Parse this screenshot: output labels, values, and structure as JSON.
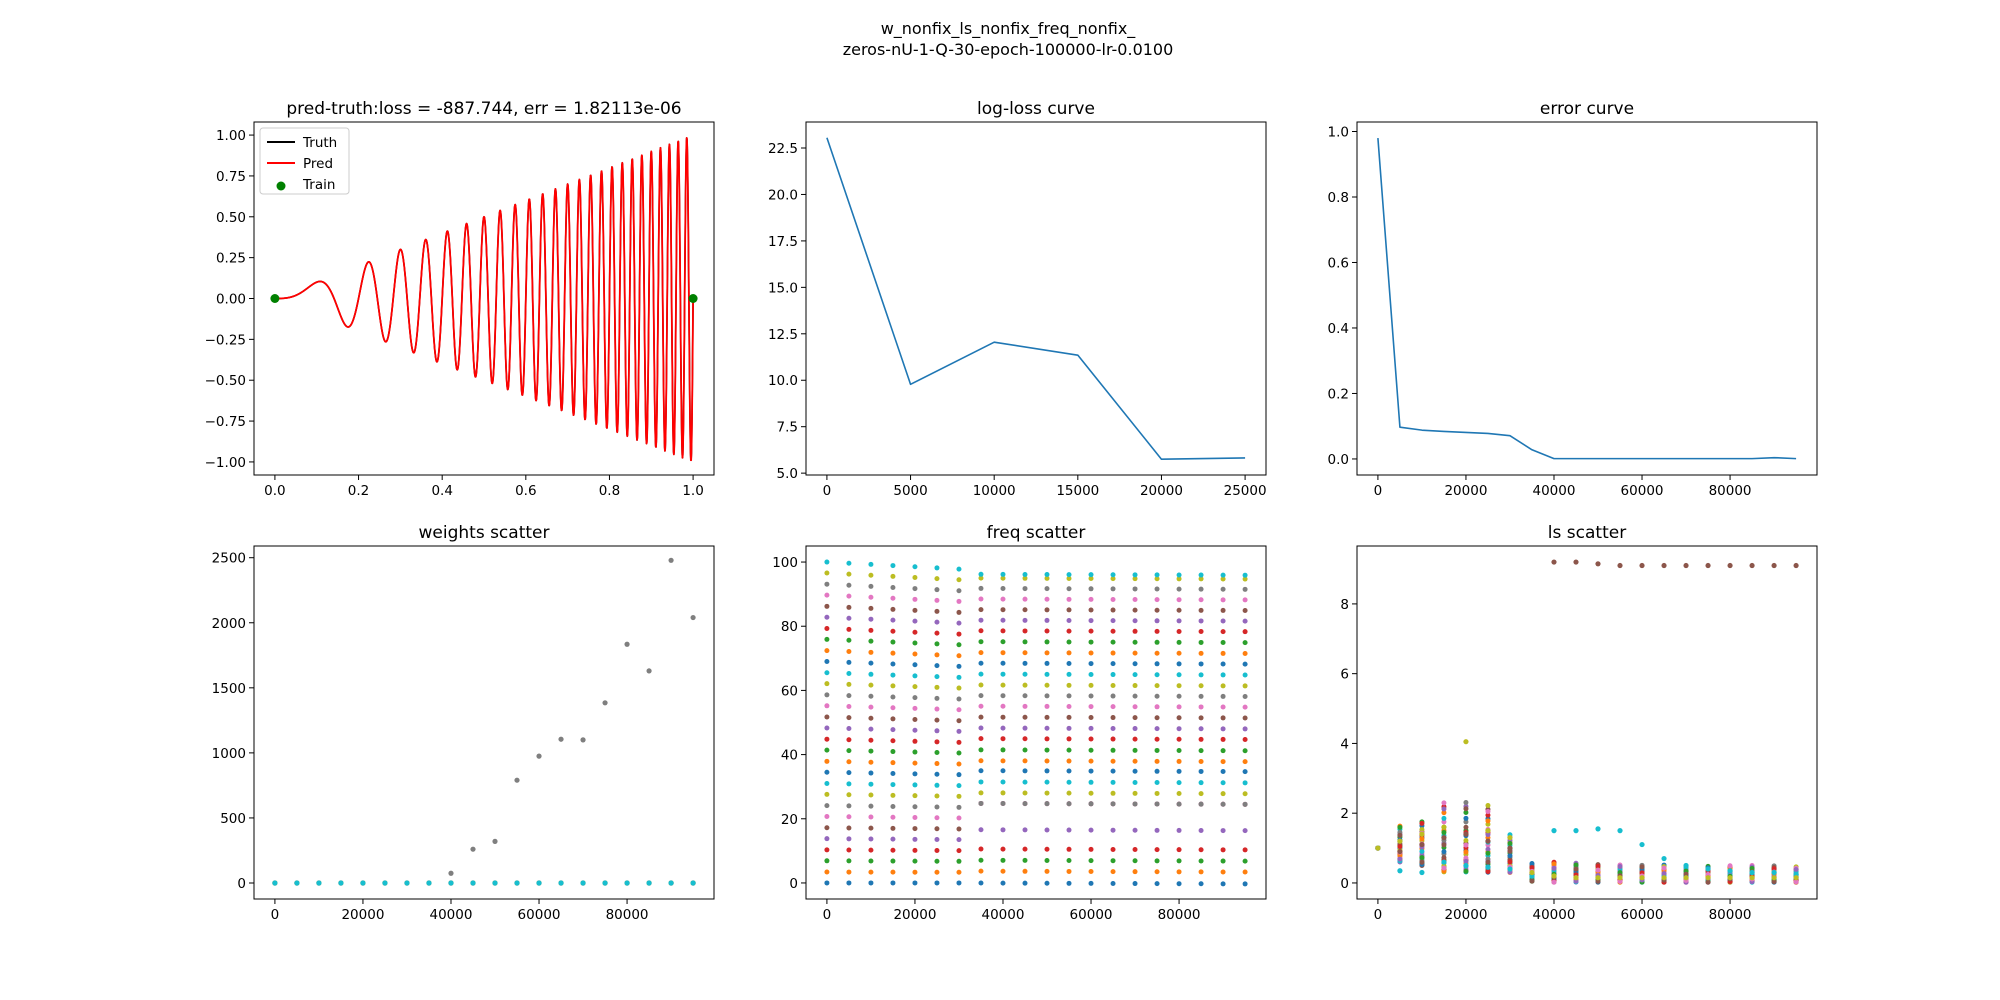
{
  "suptitle": {
    "line1": "w_nonfix_ls_nonfix_freq_nonfix_",
    "line2": "zeros-nU-1-Q-30-epoch-100000-lr-0.0100"
  },
  "chart_data": [
    {
      "id": "pred",
      "type": "line",
      "title": "pred-truth:loss = -887.744, err = 1.82113e-06",
      "xlim": [
        -0.05,
        1.05
      ],
      "ylim": [
        -1.08,
        1.08
      ],
      "xticks": [
        0,
        0.2,
        0.4,
        0.6,
        0.8,
        1.0
      ],
      "xtick_labels": [
        "0.0",
        "0.2",
        "0.4",
        "0.6",
        "0.8",
        "1.0"
      ],
      "yticks": [
        -1,
        -0.75,
        -0.5,
        -0.25,
        0,
        0.25,
        0.5,
        0.75,
        1
      ],
      "ytick_labels": [
        "−1.00",
        "−0.75",
        "−0.50",
        "−0.25",
        "0.00",
        "0.25",
        "0.50",
        "0.75",
        "1.00"
      ],
      "legend": {
        "placement": "upper-left",
        "entries": [
          {
            "label": "Truth",
            "kind": "line",
            "color": "#000000"
          },
          {
            "label": "Pred",
            "kind": "line",
            "color": "#ff0000"
          },
          {
            "label": "Train",
            "kind": "dot",
            "color": "#008000"
          }
        ]
      },
      "function": {
        "formula": "x*sin(2*pi*25*x^2)",
        "x_range": [
          0,
          1
        ],
        "samples": 1500
      },
      "series": [
        {
          "name": "Truth",
          "color": "#000000"
        },
        {
          "name": "Pred",
          "color": "#ff0000"
        }
      ],
      "train_points": [
        [
          0,
          0
        ],
        [
          1,
          0
        ]
      ]
    },
    {
      "id": "logloss",
      "type": "line",
      "title": "log-loss curve",
      "xlim": [
        -1250,
        26250
      ],
      "ylim": [
        4.9,
        23.9
      ],
      "xticks": [
        0,
        5000,
        10000,
        15000,
        20000,
        25000
      ],
      "xtick_labels": [
        "0",
        "5000",
        "10000",
        "15000",
        "20000",
        "25000"
      ],
      "yticks": [
        5,
        7.5,
        10,
        12.5,
        15,
        17.5,
        20,
        22.5
      ],
      "ytick_labels": [
        "5.0",
        "7.5",
        "10.0",
        "12.5",
        "15.0",
        "17.5",
        "20.0",
        "22.5"
      ],
      "x": [
        0,
        5000,
        10000,
        15000,
        20000,
        25000
      ],
      "values": [
        23.05,
        9.78,
        12.05,
        11.35,
        5.75,
        5.82
      ],
      "color": "#1f77b4"
    },
    {
      "id": "error",
      "type": "line",
      "title": "error curve",
      "xlim": [
        -4750,
        99750
      ],
      "ylim": [
        -0.049,
        1.029
      ],
      "xticks": [
        0,
        20000,
        40000,
        60000,
        80000
      ],
      "xtick_labels": [
        "0",
        "20000",
        "40000",
        "60000",
        "80000"
      ],
      "yticks": [
        0,
        0.2,
        0.4,
        0.6,
        0.8,
        1.0
      ],
      "ytick_labels": [
        "0.0",
        "0.2",
        "0.4",
        "0.6",
        "0.8",
        "1.0"
      ],
      "x": [
        0,
        5000,
        10000,
        15000,
        20000,
        25000,
        30000,
        35000,
        40000,
        45000,
        50000,
        55000,
        60000,
        65000,
        70000,
        75000,
        80000,
        85000,
        90000,
        95000
      ],
      "values": [
        0.98,
        0.097,
        0.088,
        0.084,
        0.081,
        0.078,
        0.071,
        0.028,
        0.001,
        0.001,
        0.001,
        0.001,
        0.001,
        0.001,
        0.001,
        0.001,
        0.001,
        0.001,
        0.004,
        0.001
      ],
      "color": "#1f77b4"
    },
    {
      "id": "weights",
      "type": "scatter",
      "title": "weights scatter",
      "xlim": [
        -4750,
        99750
      ],
      "ylim": [
        -123,
        2590
      ],
      "xticks": [
        0,
        20000,
        40000,
        60000,
        80000
      ],
      "xtick_labels": [
        "0",
        "20000",
        "40000",
        "60000",
        "80000"
      ],
      "yticks": [
        0,
        500,
        1000,
        1500,
        2000,
        2500
      ],
      "ytick_labels": [
        "0",
        "500",
        "1000",
        "1500",
        "2000",
        "2500"
      ],
      "x": [
        0,
        5000,
        10000,
        15000,
        20000,
        25000,
        30000,
        35000,
        40000,
        45000,
        50000,
        55000,
        60000,
        65000,
        70000,
        75000,
        80000,
        85000,
        90000,
        95000
      ],
      "baseline": {
        "values": 0,
        "colors": [
          "#e377c2",
          "#7f7f7f",
          "#bcbd22",
          "#17becf"
        ]
      },
      "series": [
        {
          "name": "weight-grey",
          "color": "#7f7f7f",
          "values": [
            0,
            0,
            0,
            0,
            0,
            0,
            0,
            0,
            75,
            260,
            320,
            790,
            975,
            1105,
            1100,
            1385,
            1835,
            1630,
            2480,
            2040
          ]
        }
      ]
    },
    {
      "id": "freq",
      "type": "scatter",
      "title": "freq scatter",
      "xlim": [
        -4750,
        99750
      ],
      "ylim": [
        -5,
        105
      ],
      "xticks": [
        0,
        20000,
        40000,
        60000,
        80000
      ],
      "xtick_labels": [
        "0",
        "20000",
        "40000",
        "60000",
        "80000"
      ],
      "yticks": [
        0,
        20,
        40,
        60,
        80,
        100
      ],
      "ytick_labels": [
        "0",
        "20",
        "40",
        "60",
        "80",
        "100"
      ],
      "x": [
        0,
        5000,
        10000,
        15000,
        20000,
        25000,
        30000,
        35000,
        40000,
        45000,
        50000,
        55000,
        60000,
        65000,
        70000,
        75000,
        80000,
        85000,
        90000,
        95000
      ],
      "series_count": 30,
      "start_levels": [
        0,
        3.4,
        6.9,
        10.3,
        13.8,
        17.2,
        20.7,
        24.1,
        27.6,
        31,
        34.5,
        37.9,
        41.4,
        44.8,
        48.3,
        51.7,
        55.2,
        58.6,
        62.1,
        65.5,
        69,
        72.4,
        75.9,
        79.3,
        82.8,
        86.2,
        89.7,
        93.1,
        96.6,
        100
      ],
      "end_levels": [
        0,
        3.7,
        7.1,
        10.6,
        16.6,
        24.8,
        24.8,
        24.8,
        28.1,
        31.5,
        35,
        38.1,
        41.5,
        45,
        48.3,
        51.7,
        55.1,
        58.4,
        61.7,
        65.1,
        68.5,
        71.8,
        75.2,
        78.6,
        81.9,
        85.2,
        88.5,
        91.8,
        95,
        96.2
      ],
      "transition_after_x": 30000
    },
    {
      "id": "ls",
      "type": "scatter",
      "title": "ls scatter",
      "xlim": [
        -4750,
        99750
      ],
      "ylim": [
        -0.46,
        9.66
      ],
      "xticks": [
        0,
        20000,
        40000,
        60000,
        80000
      ],
      "xtick_labels": [
        "0",
        "20000",
        "40000",
        "60000",
        "80000"
      ],
      "yticks": [
        0,
        2,
        4,
        6,
        8
      ],
      "ytick_labels": [
        "0",
        "2",
        "4",
        "6",
        "8"
      ],
      "x": [
        0,
        5000,
        10000,
        15000,
        20000,
        25000,
        30000,
        35000,
        40000,
        45000,
        50000,
        55000,
        60000,
        65000,
        70000,
        75000,
        80000,
        85000,
        90000,
        95000
      ],
      "highlights": [
        {
          "name": "ls-brown-high",
          "color": "#8c564b",
          "values": [
            1.0,
            0.9,
            1.1,
            1.3,
            1.4,
            1.2,
            1.0,
            0.25,
            9.2,
            9.2,
            9.15,
            9.1,
            9.1,
            9.1,
            9.1,
            9.1,
            9.1,
            9.1,
            9.1,
            9.1
          ]
        },
        {
          "name": "ls-cyan",
          "color": "#17becf",
          "values": [
            1.0,
            0.35,
            0.3,
            0.6,
            0.5,
            0.45,
            0.4,
            0.2,
            1.5,
            1.5,
            1.55,
            1.5,
            1.1,
            0.7,
            0.5,
            0.4,
            0.35,
            0.3,
            0.3,
            0.25
          ]
        },
        {
          "name": "ls-olive-outlier",
          "color": "#bcbd22",
          "values": [
            1.0,
            1.2,
            1.4,
            1.6,
            4.05,
            1.5,
            1.3,
            0.3,
            0.2,
            0.15,
            0.15,
            0.15,
            0.15,
            0.15,
            0.15,
            0.15,
            0.15,
            0.15,
            0.15,
            0.15
          ]
        }
      ],
      "cluster": {
        "count": 27,
        "range_by_x": [
          [
            1.0,
            1.0
          ],
          [
            0.6,
            1.65
          ],
          [
            0.5,
            1.8
          ],
          [
            0.3,
            2.3
          ],
          [
            0.3,
            2.35
          ],
          [
            0.3,
            2.3
          ],
          [
            0.3,
            1.45
          ],
          [
            0.05,
            0.6
          ],
          [
            0.02,
            0.6
          ],
          [
            0.02,
            0.58
          ],
          [
            0.02,
            0.55
          ],
          [
            0.02,
            0.55
          ],
          [
            0.02,
            0.55
          ],
          [
            0.02,
            0.52
          ],
          [
            0.02,
            0.5
          ],
          [
            0.02,
            0.5
          ],
          [
            0.02,
            0.5
          ],
          [
            0.02,
            0.5
          ],
          [
            0.02,
            0.5
          ],
          [
            0.02,
            0.48
          ]
        ]
      }
    }
  ],
  "palette": [
    "#1f77b4",
    "#ff7f0e",
    "#2ca02c",
    "#d62728",
    "#9467bd",
    "#8c564b",
    "#e377c2",
    "#7f7f7f",
    "#bcbd22",
    "#17becf"
  ]
}
